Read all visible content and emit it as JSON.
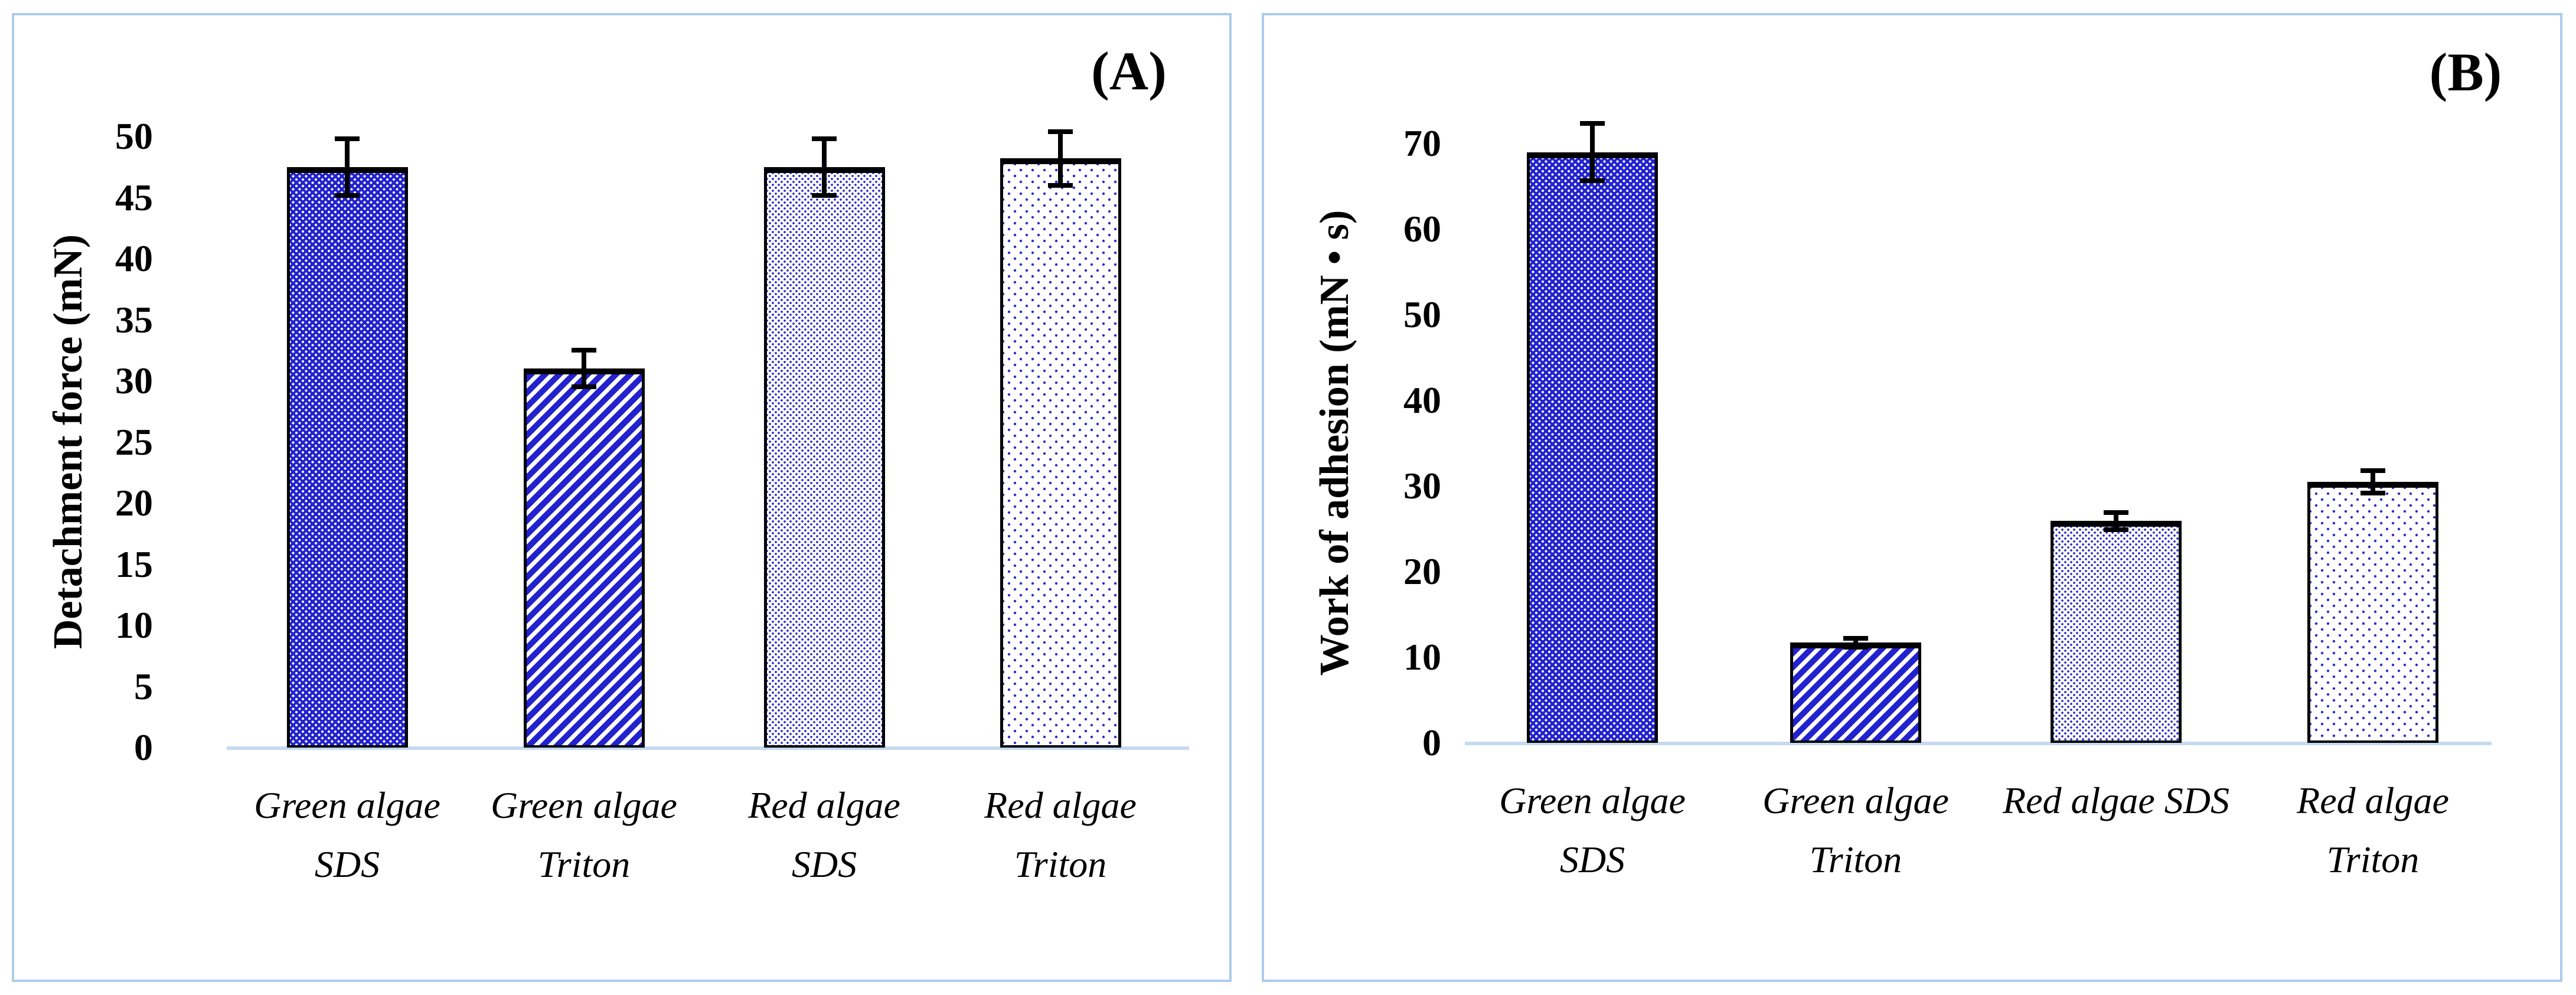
{
  "colors": {
    "bar_blue": "#2222CE",
    "dot_blue": "#2A2AC8",
    "panel_border": "#AECBEA",
    "axis_baseline": "#C5DAF0",
    "error_bar": "#000000",
    "text": "#000000"
  },
  "chart_data": [
    {
      "type": "bar",
      "panel_label": "(A)",
      "ylabel": "Detachment force (mN)",
      "xlabel": "",
      "ylim": [
        0,
        50
      ],
      "ytick_step": 5,
      "ytick_labels": [
        "0",
        "5",
        "10",
        "15",
        "20",
        "25",
        "30",
        "35",
        "40",
        "45",
        "50"
      ],
      "grid": false,
      "legend_position": "none",
      "categories": [
        "Green algae SDS",
        "Green algae Triton",
        "Red algae SDS",
        "Red algae Triton"
      ],
      "category_lines": [
        [
          "Green algae",
          "SDS"
        ],
        [
          "Green algae",
          "Triton"
        ],
        [
          "Red algae",
          "SDS"
        ],
        [
          "Red algae",
          "Triton"
        ]
      ],
      "values": [
        47.5,
        31.0,
        47.5,
        48.2
      ],
      "errors": [
        2.5,
        1.7,
        2.5,
        2.4
      ],
      "bar_patterns": [
        "white-dots-on-blue",
        "diagonal-stripes",
        "dense-blue-dots",
        "sparse-blue-dots"
      ]
    },
    {
      "type": "bar",
      "panel_label": "(B)",
      "ylabel": "Work of adhesion (mN • s)",
      "xlabel": "",
      "ylim": [
        0,
        70
      ],
      "ytick_step": 10,
      "ytick_labels": [
        "0",
        "10",
        "20",
        "30",
        "40",
        "50",
        "60",
        "70"
      ],
      "grid": false,
      "legend_position": "none",
      "categories": [
        "Green algae SDS",
        "Green algae Triton",
        "Red algae SDS",
        "Red algae Triton"
      ],
      "category_lines": [
        [
          "Green algae",
          "SDS"
        ],
        [
          "Green algae",
          "Triton"
        ],
        [
          "Red algae SDS"
        ],
        [
          "Red algae",
          "Triton"
        ]
      ],
      "values": [
        69.0,
        11.7,
        25.9,
        30.5
      ],
      "errors": [
        3.6,
        0.8,
        1.3,
        1.6
      ],
      "bar_patterns": [
        "white-dots-on-blue",
        "diagonal-stripes",
        "dense-blue-dots",
        "sparse-blue-dots"
      ]
    }
  ]
}
